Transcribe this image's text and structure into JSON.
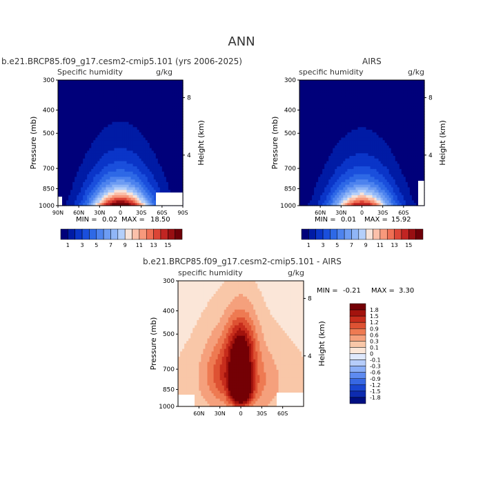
{
  "page": {
    "title": "ANN"
  },
  "colors": {
    "moist": [
      "#00007a",
      "#001ba5",
      "#0a35c8",
      "#1a4fdc",
      "#2e69e6",
      "#4d83ee",
      "#6d9cf3",
      "#90b6f7",
      "#b4cffa",
      "#f7e3d9",
      "#fbc0aa",
      "#f8997c",
      "#ef6f54",
      "#dc4536",
      "#c12523",
      "#980f12",
      "#6e0009"
    ],
    "diff": [
      "#000f82",
      "#0d2bb0",
      "#1a47d1",
      "#3768e3",
      "#5e8bf0",
      "#8aaef7",
      "#b6cdfa",
      "#dfe8fc",
      "#fbe6d8",
      "#f9c7a8",
      "#f5a07c",
      "#ee7a52",
      "#de5233",
      "#c72d1c",
      "#a3130d",
      "#740005"
    ]
  },
  "chart_data": [
    {
      "type": "heatmap",
      "title": "b.e21.BRCP85.f09_g17.cesm2-cmip5.101 (yrs 2006-2025)",
      "subtitle_left": "Specific humidity",
      "units": "g/kg",
      "ylabel": "Pressure (mb)",
      "ylabel_right": "Height (km)",
      "x_ticks": [
        "90N",
        "60N",
        "30N",
        "0",
        "30S",
        "60S",
        "90S"
      ],
      "y_ticks": [
        "300",
        "400",
        "500",
        "700",
        "850",
        "1000"
      ],
      "y_right_ticks": [
        "8",
        "4"
      ],
      "stats": {
        "min_label": "MIN =",
        "min": "0.02",
        "max_label": "MAX =",
        "max": "18.50"
      },
      "ylim": [
        300,
        1000
      ],
      "xlim": [
        90,
        -90
      ],
      "profile": {
        "peak": 18.5,
        "surface_peak_halfwidth_deg": 33,
        "scale_height_mb": 180
      }
    },
    {
      "type": "heatmap",
      "title": "AIRS",
      "subtitle_left": "specific humidity",
      "units": "g/kg",
      "ylabel": "Pressure (mb)",
      "ylabel_right": "Height (km)",
      "x_ticks": [
        "60N",
        "30N",
        "0",
        "30S",
        "60S"
      ],
      "y_ticks": [
        "300",
        "400",
        "500",
        "700",
        "850",
        "1000"
      ],
      "y_right_ticks": [
        "8",
        "4"
      ],
      "stats": {
        "min_label": "MIN =",
        "min": "0.01",
        "max_label": "MAX =",
        "max": "15.92"
      },
      "ylim": [
        300,
        1000
      ],
      "xlim": [
        90,
        -90
      ],
      "profile": {
        "peak": 15.92,
        "surface_peak_halfwidth_deg": 33,
        "scale_height_mb": 180
      }
    },
    {
      "type": "heatmap",
      "title": "b.e21.BRCP85.f09_g17.cesm2-cmip5.101 - AIRS",
      "subtitle_left": "specific humidity",
      "units": "g/kg",
      "ylabel": "Pressure (mb)",
      "ylabel_right": "Height (km)",
      "x_ticks": [
        "60N",
        "30N",
        "0",
        "30S",
        "60S"
      ],
      "y_ticks": [
        "300",
        "400",
        "500",
        "700",
        "850",
        "1000"
      ],
      "y_right_ticks": [
        "8",
        "4"
      ],
      "stats": {
        "min_label": "MIN =",
        "min": "-0.21",
        "max_label": "MAX =",
        "max": "3.30"
      },
      "ylim": [
        300,
        1000
      ],
      "xlim": [
        90,
        -90
      ]
    }
  ],
  "colorbar_moist": {
    "labels": [
      "1",
      "3",
      "5",
      "7",
      "9",
      "11",
      "13",
      "15"
    ]
  },
  "colorbar_diff": {
    "labels": [
      "1.8",
      "1.5",
      "1.2",
      "0.9",
      "0.6",
      "0.3",
      "0.1",
      "0",
      "-0.1",
      "-0.3",
      "-0.6",
      "-0.9",
      "-1.2",
      "-1.5",
      "-1.8"
    ]
  }
}
